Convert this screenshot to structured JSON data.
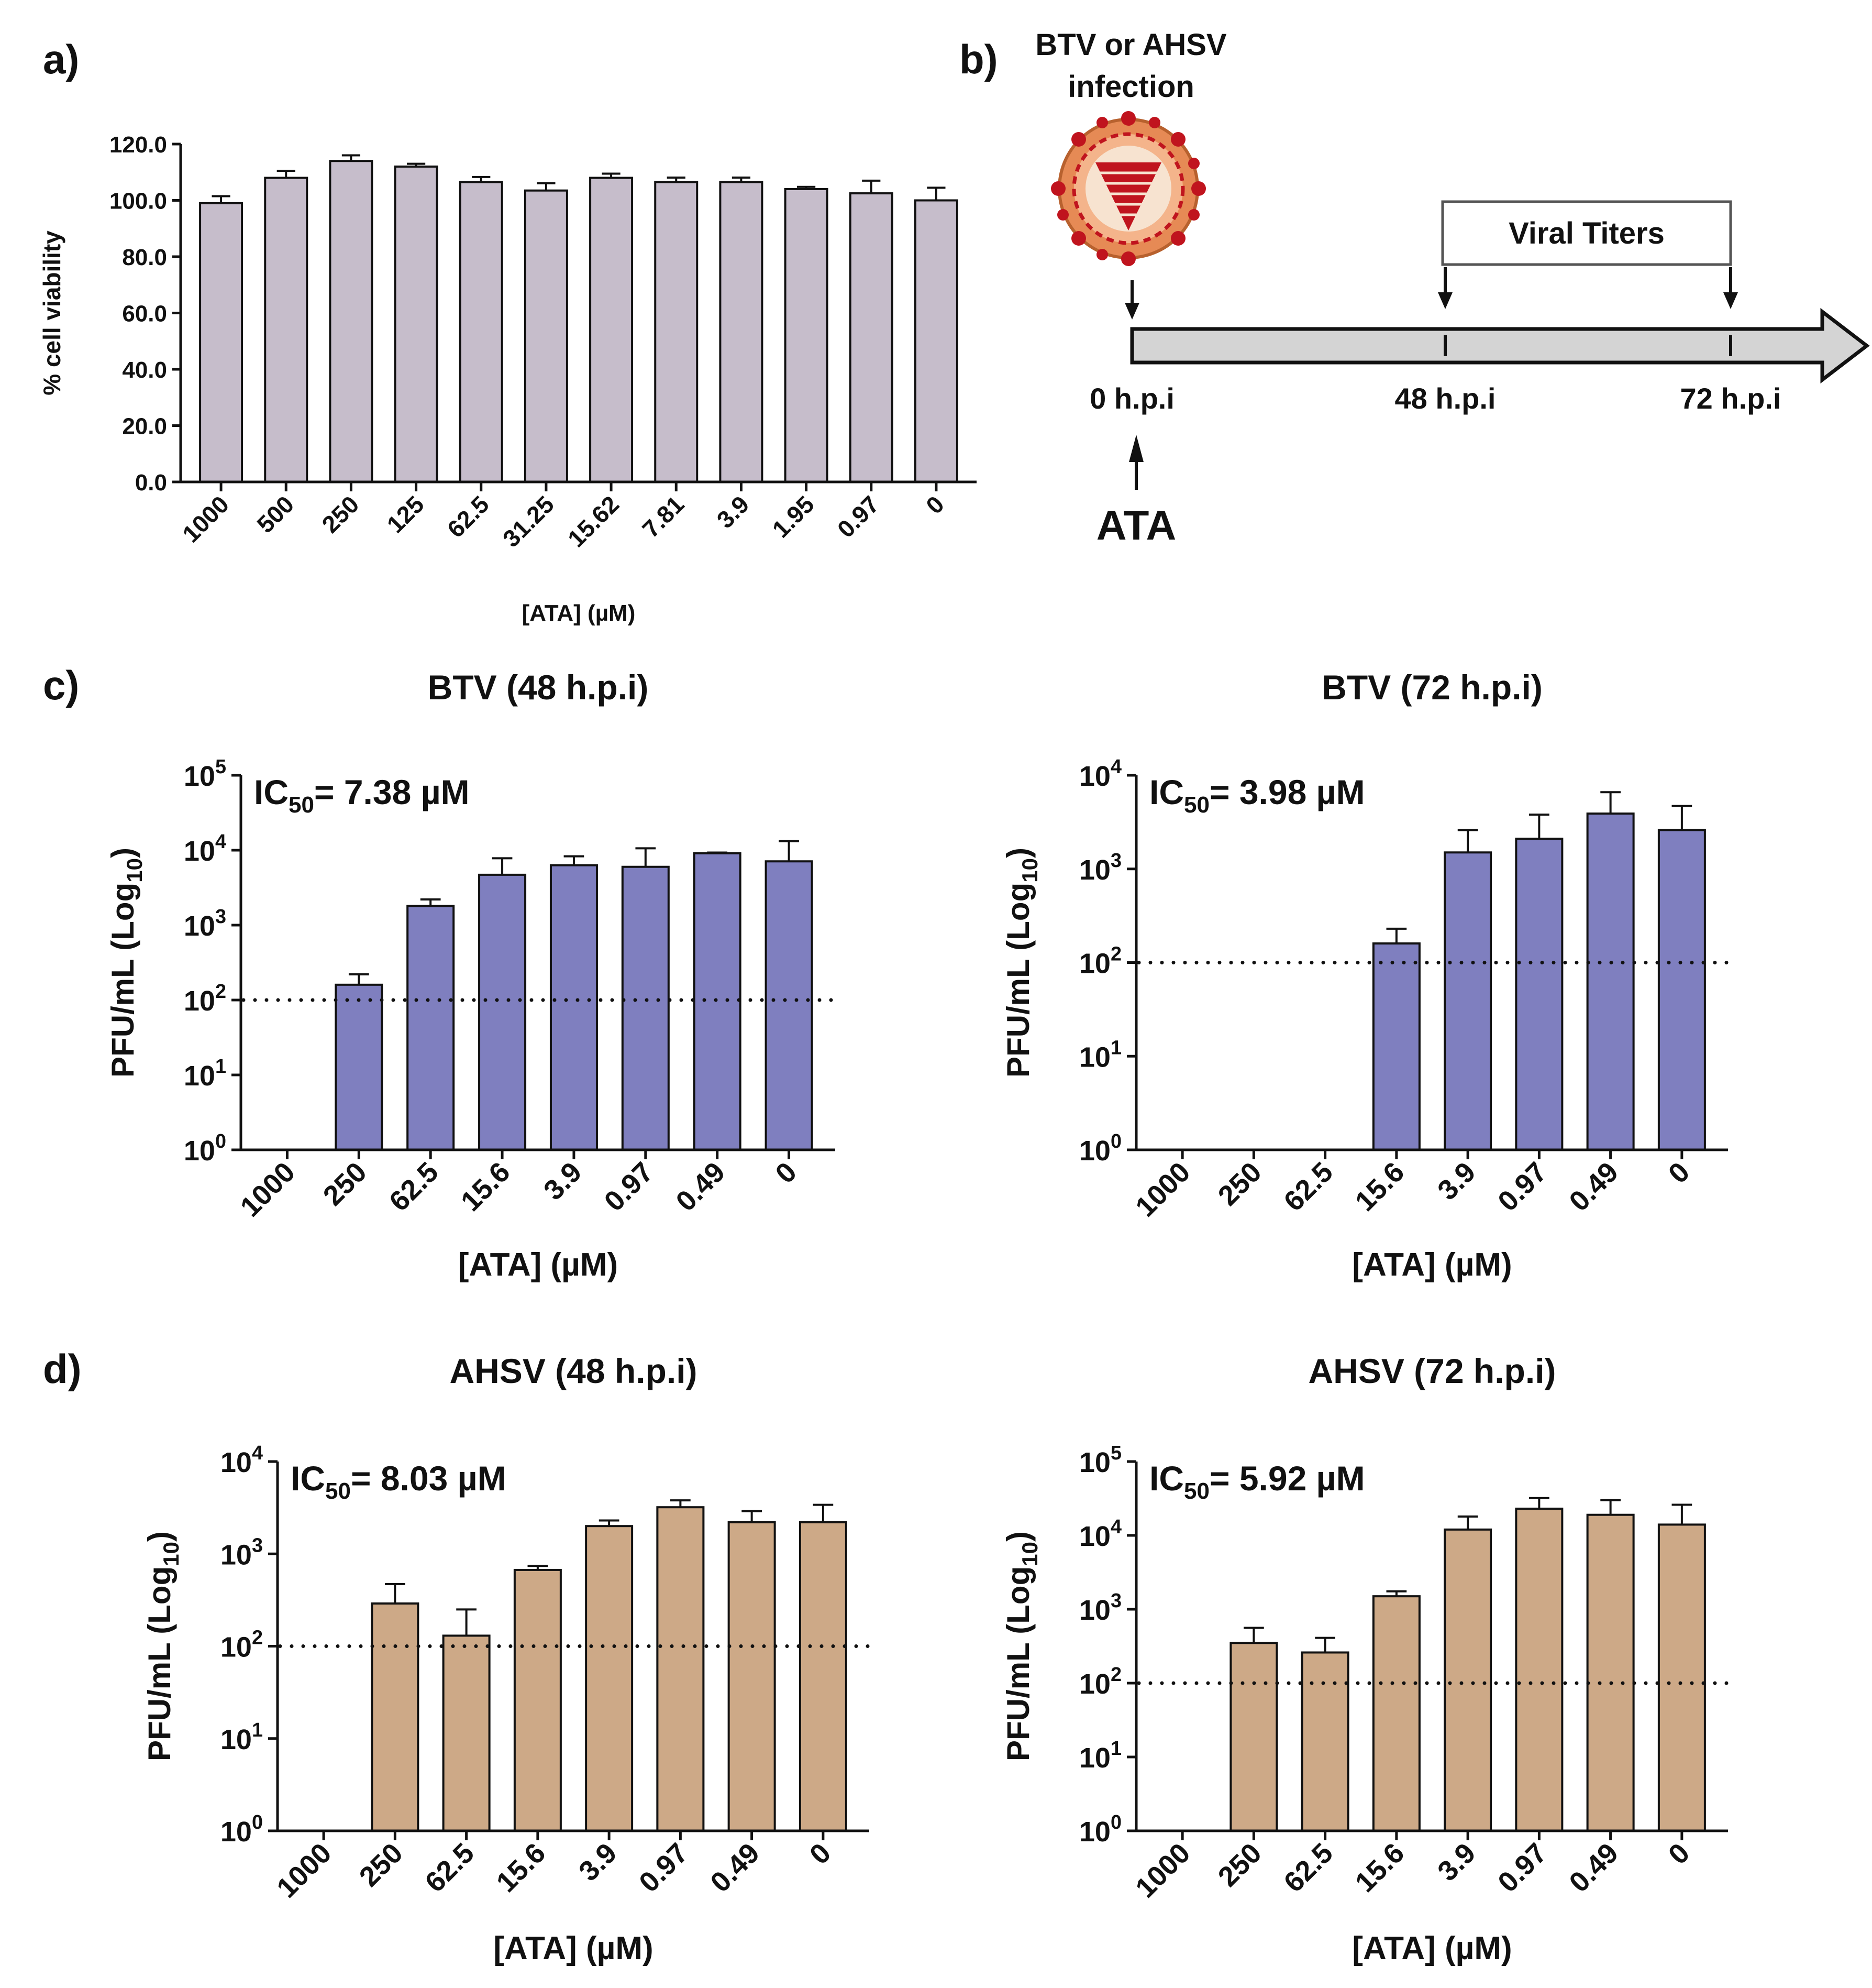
{
  "colors": {
    "viability_bar": "#c6bdcb",
    "btv_bar": "#7f7fbf",
    "ahsv_bar": "#cda987",
    "edge": "#111111",
    "diagram_gray": "#d4d4d4",
    "virus_orange": "#e68a55",
    "virus_red": "#c0141e"
  },
  "panel_labels": {
    "a": "a)",
    "b": "b)",
    "c": "c)",
    "d": "d)"
  },
  "diagram": {
    "infection_label_line1": "BTV or AHSV",
    "infection_label_line2": "infection",
    "virus_icon": "virus-particle-icon",
    "titers_label": "Viral Titers",
    "timepoints": [
      "0 h.p.i",
      "48 h.p.i",
      "72 h.p.i"
    ],
    "treatment_label": "ATA"
  },
  "chart_data": [
    {
      "id": "a",
      "type": "bar",
      "title": "",
      "xlabel": "[ATA] (µM)",
      "ylabel": "% cell viability",
      "categories": [
        "1000",
        "500",
        "250",
        "125",
        "62.5",
        "31.25",
        "15.62",
        "7.81",
        "3.9",
        "1.95",
        "0.97",
        "0"
      ],
      "values": [
        99.0,
        108.0,
        114.0,
        112.0,
        106.5,
        103.5,
        108.0,
        106.5,
        106.5,
        104.0,
        102.5,
        100.0
      ],
      "errors": [
        2.5,
        2.5,
        2.0,
        1.0,
        1.8,
        2.6,
        1.5,
        1.6,
        1.6,
        0.8,
        4.5,
        4.5
      ],
      "ylim": [
        0,
        120
      ],
      "yticks": [
        "0.0",
        "20.0",
        "40.0",
        "60.0",
        "80.0",
        "100.0",
        "120.0"
      ],
      "color": "viability_bar"
    },
    {
      "id": "c1",
      "type": "bar",
      "scale": "log10",
      "title": "BTV (48 h.p.i)",
      "xlabel": "[ATA] (µM)",
      "ylabel": "PFU/mL (Log",
      "ylabel_sub": "10",
      "ylabel_end": ")",
      "ic50_prefix": "IC",
      "ic50_sub": "50",
      "ic50_value": "= 7.38 µM",
      "categories": [
        "1000",
        "250",
        "62.5",
        "15.6",
        "3.9",
        "0.97",
        "0.49",
        "0"
      ],
      "values": [
        null,
        160,
        1800,
        4700,
        6300,
        6000,
        9100,
        7100
      ],
      "error_upper": [
        null,
        220,
        2200,
        7800,
        8300,
        10600,
        9300,
        13200
      ],
      "ylim_exp": [
        0,
        5
      ],
      "detection_limit": 100,
      "color": "btv_bar"
    },
    {
      "id": "c2",
      "type": "bar",
      "scale": "log10",
      "title": "BTV (72 h.p.i)",
      "xlabel": "[ATA] (µM)",
      "ylabel": "PFU/mL (Log",
      "ylabel_sub": "10",
      "ylabel_end": ")",
      "ic50_prefix": "IC",
      "ic50_sub": "50",
      "ic50_value": "= 3.98 µM",
      "categories": [
        "1000",
        "250",
        "62.5",
        "15.6",
        "3.9",
        "0.97",
        "0.49",
        "0"
      ],
      "values": [
        null,
        null,
        null,
        160,
        1500,
        2100,
        3900,
        2600
      ],
      "error_upper": [
        null,
        null,
        null,
        230,
        2600,
        3800,
        6600,
        4700
      ],
      "ylim_exp": [
        0,
        4
      ],
      "detection_limit": 100,
      "color": "btv_bar"
    },
    {
      "id": "d1",
      "type": "bar",
      "scale": "log10",
      "title": "AHSV (48 h.p.i)",
      "xlabel": "[ATA] (µM)",
      "ylabel": "PFU/mL (Log",
      "ylabel_sub": "10",
      "ylabel_end": ")",
      "ic50_prefix": "IC",
      "ic50_sub": "50",
      "ic50_value": "= 8.03 µM",
      "categories": [
        "1000",
        "250",
        "62.5",
        "15.6",
        "3.9",
        "0.97",
        "0.49",
        "0"
      ],
      "values": [
        null,
        290,
        130,
        670,
        2000,
        3200,
        2200,
        2200
      ],
      "error_upper": [
        null,
        470,
        250,
        740,
        2300,
        3800,
        2900,
        3400
      ],
      "ylim_exp": [
        0,
        4
      ],
      "detection_limit": 100,
      "color": "ahsv_bar"
    },
    {
      "id": "d2",
      "type": "bar",
      "scale": "log10",
      "title": "AHSV (72 h.p.i)",
      "xlabel": "[ATA] (µM)",
      "ylabel": "PFU/mL (Log",
      "ylabel_sub": "10",
      "ylabel_end": ")",
      "ic50_prefix": "IC",
      "ic50_sub": "50",
      "ic50_value": "= 5.92 µM",
      "categories": [
        "1000",
        "250",
        "62.5",
        "15.6",
        "3.9",
        "0.97",
        "0.49",
        "0"
      ],
      "values": [
        null,
        350,
        260,
        1500,
        12000,
        23000,
        19000,
        14000
      ],
      "error_upper": [
        null,
        560,
        410,
        1750,
        18000,
        32000,
        30000,
        26000
      ],
      "ylim_exp": [
        0,
        5
      ],
      "detection_limit": 100,
      "color": "ahsv_bar"
    }
  ]
}
